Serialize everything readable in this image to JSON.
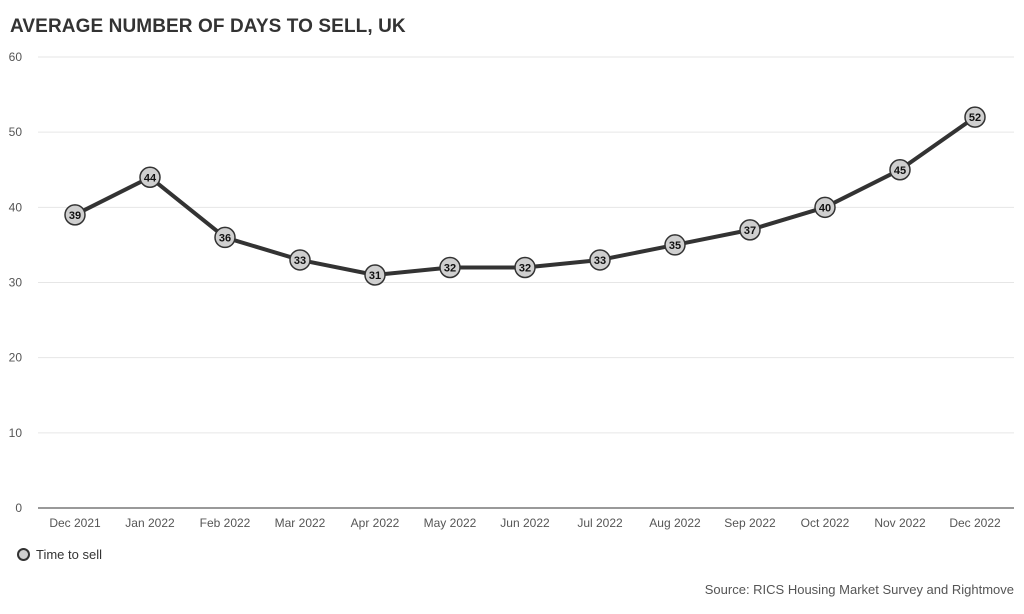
{
  "chart_data": {
    "type": "line",
    "title": "AVERAGE NUMBER OF DAYS TO SELL, UK",
    "categories": [
      "Dec 2021",
      "Jan 2022",
      "Feb 2022",
      "Mar 2022",
      "Apr 2022",
      "May 2022",
      "Jun 2022",
      "Jul 2022",
      "Aug 2022",
      "Sep 2022",
      "Oct 2022",
      "Nov 2022",
      "Dec 2022"
    ],
    "series": [
      {
        "name": "Time to sell",
        "values": [
          39,
          44,
          36,
          33,
          31,
          32,
          32,
          33,
          35,
          37,
          40,
          45,
          52
        ]
      }
    ],
    "y_ticks": [
      "0",
      "10",
      "20",
      "30",
      "40",
      "50",
      "60"
    ],
    "ylim": [
      0,
      60
    ],
    "grid": true,
    "legend_position": "bottom-left",
    "source": "Source: RICS Housing Market Survey and Rightmove",
    "colors": {
      "line": "#333333",
      "marker_fill": "#cfcfcf",
      "grid": "#e6e6e6",
      "axis": "#333333"
    }
  }
}
